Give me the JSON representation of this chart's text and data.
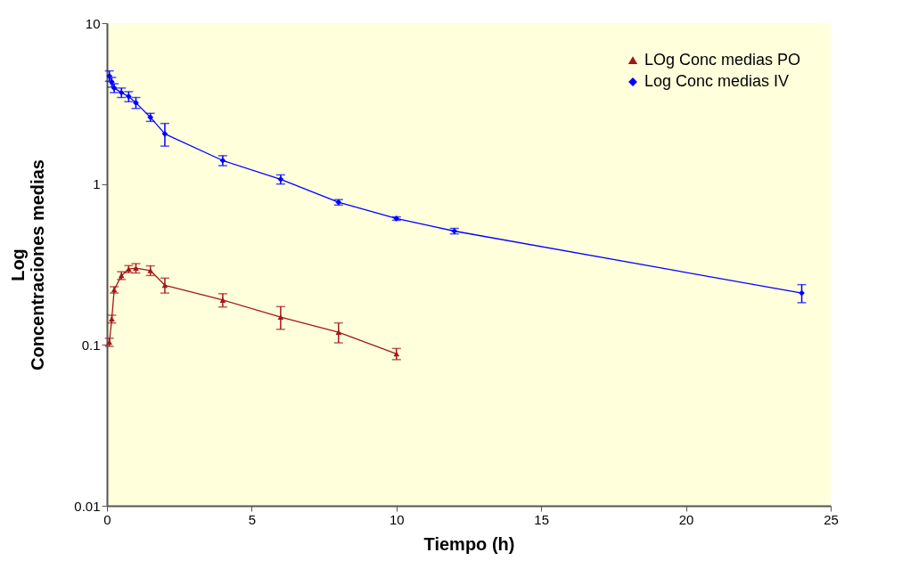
{
  "chart_data": {
    "type": "line",
    "xlabel": "Tiempo (h)",
    "ylabel": "Log\nConcentraciones medias",
    "xlim": [
      0,
      25
    ],
    "xticks": [
      0,
      5,
      10,
      15,
      20,
      25
    ],
    "ylim": [
      0.01,
      10
    ],
    "yticks": [
      0.01,
      0.1,
      1,
      10
    ],
    "log": true,
    "grid": false,
    "legend": "top right",
    "line_style": "solid",
    "series": [
      {
        "name": "LOg Conc medias PO",
        "color": "#a01818",
        "marker": "triangle",
        "x": [
          0.083,
          0.167,
          0.25,
          0.5,
          0.75,
          1,
          1.5,
          2,
          4,
          6,
          8,
          10
        ],
        "values": [
          0.104,
          0.145,
          0.22,
          0.27,
          0.296,
          0.3,
          0.29,
          0.235,
          0.19,
          0.149,
          0.12,
          0.088
        ],
        "errors": [
          0.006,
          0.008,
          0.01,
          0.015,
          0.015,
          0.02,
          0.02,
          0.025,
          0.018,
          0.024,
          0.017,
          0.007
        ]
      },
      {
        "name": "Log Conc medias IV",
        "color": "#0000ff",
        "marker": "diamond",
        "x": [
          0.083,
          0.167,
          0.25,
          0.5,
          0.75,
          1,
          1.5,
          2,
          4,
          6,
          8,
          10,
          12,
          24
        ],
        "values": [
          4.7,
          4.3,
          3.95,
          3.7,
          3.5,
          3.2,
          2.6,
          2.05,
          1.4,
          1.07,
          0.77,
          0.61,
          0.51,
          0.21
        ],
        "errors": [
          0.35,
          0.3,
          0.25,
          0.25,
          0.25,
          0.25,
          0.15,
          0.33,
          0.1,
          0.07,
          0.03,
          0.015,
          0.02,
          0.027
        ]
      }
    ]
  }
}
